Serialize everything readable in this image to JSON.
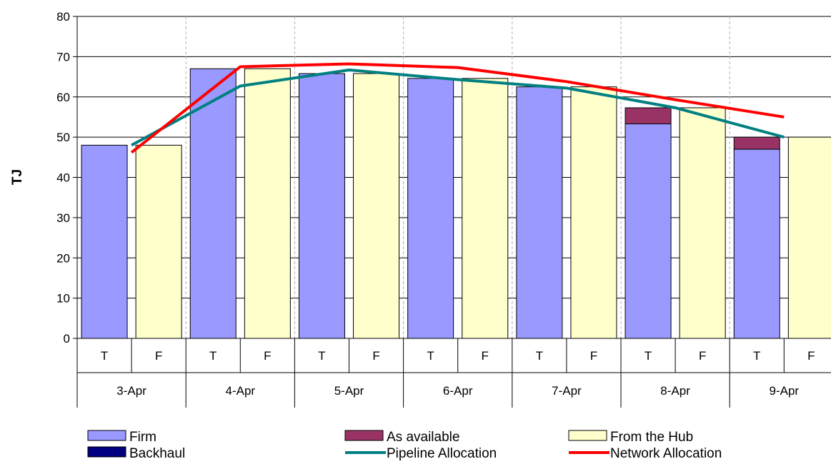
{
  "chart_data": {
    "type": "bar",
    "ylabel": "TJ",
    "ylim": [
      0,
      80
    ],
    "yticks": [
      0,
      10,
      20,
      30,
      40,
      50,
      60,
      70,
      80
    ],
    "dates": [
      "3-Apr",
      "4-Apr",
      "5-Apr",
      "6-Apr",
      "7-Apr",
      "8-Apr",
      "9-Apr"
    ],
    "sub_categories": [
      "T",
      "F"
    ],
    "grid": "vertical dashed lines at date boundaries",
    "legend_position": "bottom",
    "bar_series": [
      {
        "name": "Firm",
        "color": "#9999ff",
        "category": "T",
        "values": [
          48,
          67,
          65.8,
          64.6,
          62.5,
          53.3,
          47
        ]
      },
      {
        "name": "As available",
        "color": "#993366",
        "category": "T",
        "values": [
          0,
          0,
          0,
          0,
          0,
          4,
          3
        ]
      },
      {
        "name": "Backhaul",
        "color": "#000080",
        "category": "T",
        "values": [
          0,
          0,
          0,
          0,
          0,
          0,
          0
        ]
      },
      {
        "name": "From the Hub",
        "color": "#ffffcc",
        "category": "F",
        "values": [
          48,
          67,
          65.8,
          64.6,
          62.5,
          57.3,
          50
        ]
      }
    ],
    "line_series": [
      {
        "name": "Pipeline Allocation",
        "color": "#008080",
        "values": [
          48,
          62.7,
          66.7,
          64.3,
          62.2,
          57.3,
          50
        ]
      },
      {
        "name": "Network Allocation",
        "color": "#ff0000",
        "values": [
          46.2,
          67.5,
          68.2,
          67.3,
          63.8,
          59.3,
          55
        ]
      }
    ],
    "legend": [
      {
        "label": "Firm",
        "kind": "box",
        "color": "#9999ff"
      },
      {
        "label": "As available",
        "kind": "box",
        "color": "#993366"
      },
      {
        "label": "From the Hub",
        "kind": "box",
        "color": "#ffffcc"
      },
      {
        "label": "Backhaul",
        "kind": "box",
        "color": "#000080"
      },
      {
        "label": "Pipeline Allocation",
        "kind": "line",
        "color": "#008080"
      },
      {
        "label": "Network Allocation",
        "kind": "line",
        "color": "#ff0000"
      }
    ]
  }
}
